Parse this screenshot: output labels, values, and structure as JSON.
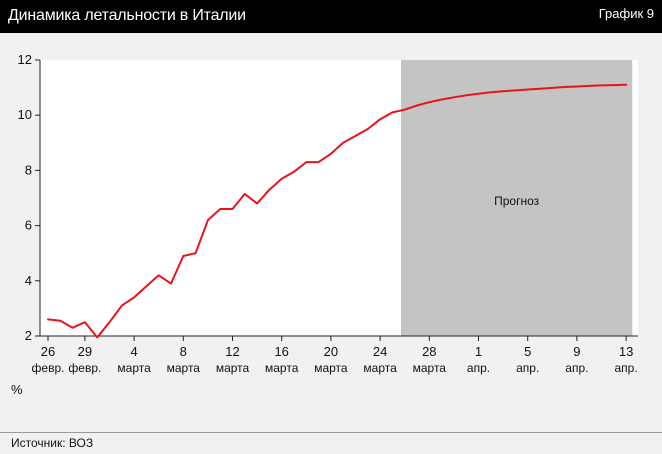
{
  "header": {
    "title": "Динамика летальности в Италии",
    "badge": "График 9"
  },
  "footer": {
    "unit": "%",
    "source": "Источник: ВОЗ"
  },
  "colors": {
    "line": "#e8141a",
    "forecast_band": "#c4c4c4",
    "plot_bg": "#ffffff"
  },
  "chart_data": {
    "type": "line",
    "title": "Динамика летальности в Италии",
    "xlabel": "",
    "ylabel": "%",
    "ylim": [
      2,
      12
    ],
    "yticks": [
      2,
      4,
      6,
      8,
      10,
      12
    ],
    "grid": false,
    "legend": "none",
    "x_start_day": 26,
    "xticks": [
      {
        "day": 26,
        "label": [
          "26",
          "февр."
        ]
      },
      {
        "day": 29,
        "label": [
          "29",
          "февр."
        ]
      },
      {
        "day": 33,
        "label": [
          "4",
          "марта"
        ]
      },
      {
        "day": 37,
        "label": [
          "8",
          "марта"
        ]
      },
      {
        "day": 41,
        "label": [
          "12",
          "марта"
        ]
      },
      {
        "day": 45,
        "label": [
          "16",
          "марта"
        ]
      },
      {
        "day": 49,
        "label": [
          "20",
          "марта"
        ]
      },
      {
        "day": 53,
        "label": [
          "24",
          "марта"
        ]
      },
      {
        "day": 57,
        "label": [
          "28",
          "марта"
        ]
      },
      {
        "day": 61,
        "label": [
          "1",
          "апр."
        ]
      },
      {
        "day": 65,
        "label": [
          "5",
          "апр."
        ]
      },
      {
        "day": 69,
        "label": [
          "9",
          "апр."
        ]
      },
      {
        "day": 73,
        "label": [
          "13",
          "апр."
        ]
      }
    ],
    "forecast": {
      "label": "Прогноз",
      "from_day": 54.7,
      "to_day": 73.5
    },
    "series": [
      {
        "name": "",
        "x": [
          26,
          27,
          28,
          29,
          30,
          31,
          32,
          33,
          34,
          35,
          36,
          37,
          38,
          39,
          40,
          41,
          42,
          43,
          44,
          45,
          46,
          47,
          48,
          49,
          50,
          51,
          52,
          53,
          54,
          55,
          56,
          57,
          58,
          59,
          60,
          61,
          62,
          63,
          64,
          65,
          66,
          67,
          68,
          69,
          70,
          71,
          72,
          73
        ],
        "y": [
          2.6,
          2.55,
          2.3,
          2.5,
          1.95,
          2.5,
          3.1,
          3.4,
          3.8,
          4.2,
          3.9,
          4.9,
          5.0,
          6.2,
          6.6,
          6.6,
          7.15,
          6.8,
          7.3,
          7.7,
          7.95,
          8.3,
          8.3,
          8.6,
          9.0,
          9.25,
          9.5,
          9.85,
          10.1,
          10.2,
          10.35,
          10.47,
          10.57,
          10.65,
          10.72,
          10.78,
          10.83,
          10.87,
          10.9,
          10.93,
          10.96,
          10.99,
          11.02,
          11.04,
          11.06,
          11.08,
          11.09,
          11.1
        ]
      }
    ]
  }
}
